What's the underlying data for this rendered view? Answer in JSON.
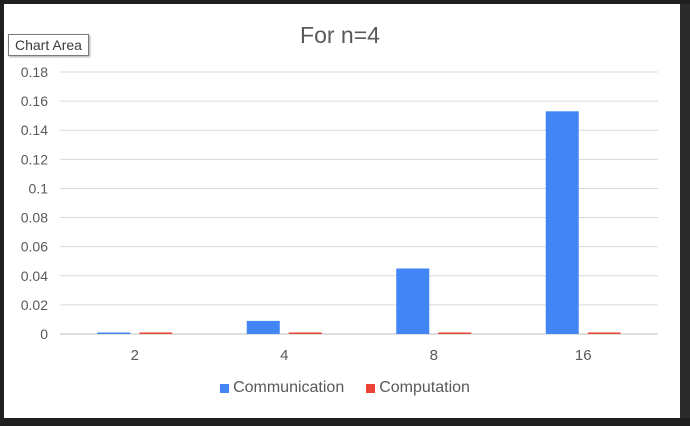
{
  "tooltip": {
    "label": "Chart Area"
  },
  "chart_data": {
    "type": "bar",
    "title": "For n=4",
    "categories": [
      "2",
      "4",
      "8",
      "16"
    ],
    "series": [
      {
        "name": "Communication",
        "color": "#4285f4",
        "values": [
          0.001,
          0.009,
          0.045,
          0.153
        ]
      },
      {
        "name": "Computation",
        "color": "#ea4335",
        "values": [
          0.001,
          0.001,
          0.001,
          0.001
        ]
      }
    ],
    "ylim": [
      0,
      0.18
    ],
    "yticks": [
      0,
      0.02,
      0.04,
      0.06,
      0.08,
      0.1,
      0.12,
      0.14,
      0.16,
      0.18
    ],
    "ytick_labels": [
      "0",
      "0.02",
      "0.04",
      "0.06",
      "0.08",
      "0.1",
      "0.12",
      "0.14",
      "0.16",
      "0.18"
    ],
    "grid": true,
    "legend_position": "bottom"
  }
}
